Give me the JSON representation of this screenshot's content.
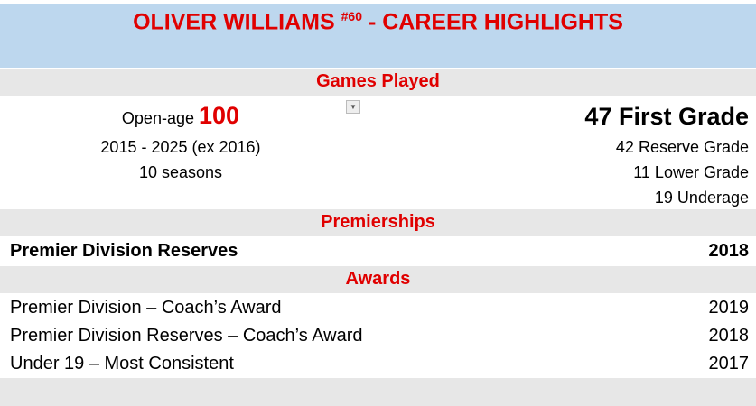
{
  "header": {
    "name": "OLIVER WILLIAMS",
    "number": "#60",
    "suffix": "- CAREER HIGHLIGHTS"
  },
  "games": {
    "title": "Games Played",
    "open_age_label": "Open-age",
    "open_age_value": "100",
    "years": "2015 - 2025 (ex 2016)",
    "seasons": "10 seasons",
    "first_grade": "47 First Grade",
    "reserve": "42 Reserve Grade",
    "lower": "11 Lower Grade",
    "underage": "19 Underage"
  },
  "premierships": {
    "title": "Premierships",
    "items": [
      {
        "name": "Premier Division Reserves",
        "year": "2018"
      }
    ]
  },
  "awards": {
    "title": "Awards",
    "items": [
      {
        "name": "Premier Division – Coach’s Award",
        "year": "2019"
      },
      {
        "name": "Premier Division Reserves – Coach’s Award",
        "year": "2018"
      },
      {
        "name": "Under 19 – Most Consistent",
        "year": "2017"
      }
    ]
  },
  "colors": {
    "accent": "#e00000",
    "header_bg": "#bdd7ee",
    "band_bg": "#e7e7e7"
  }
}
